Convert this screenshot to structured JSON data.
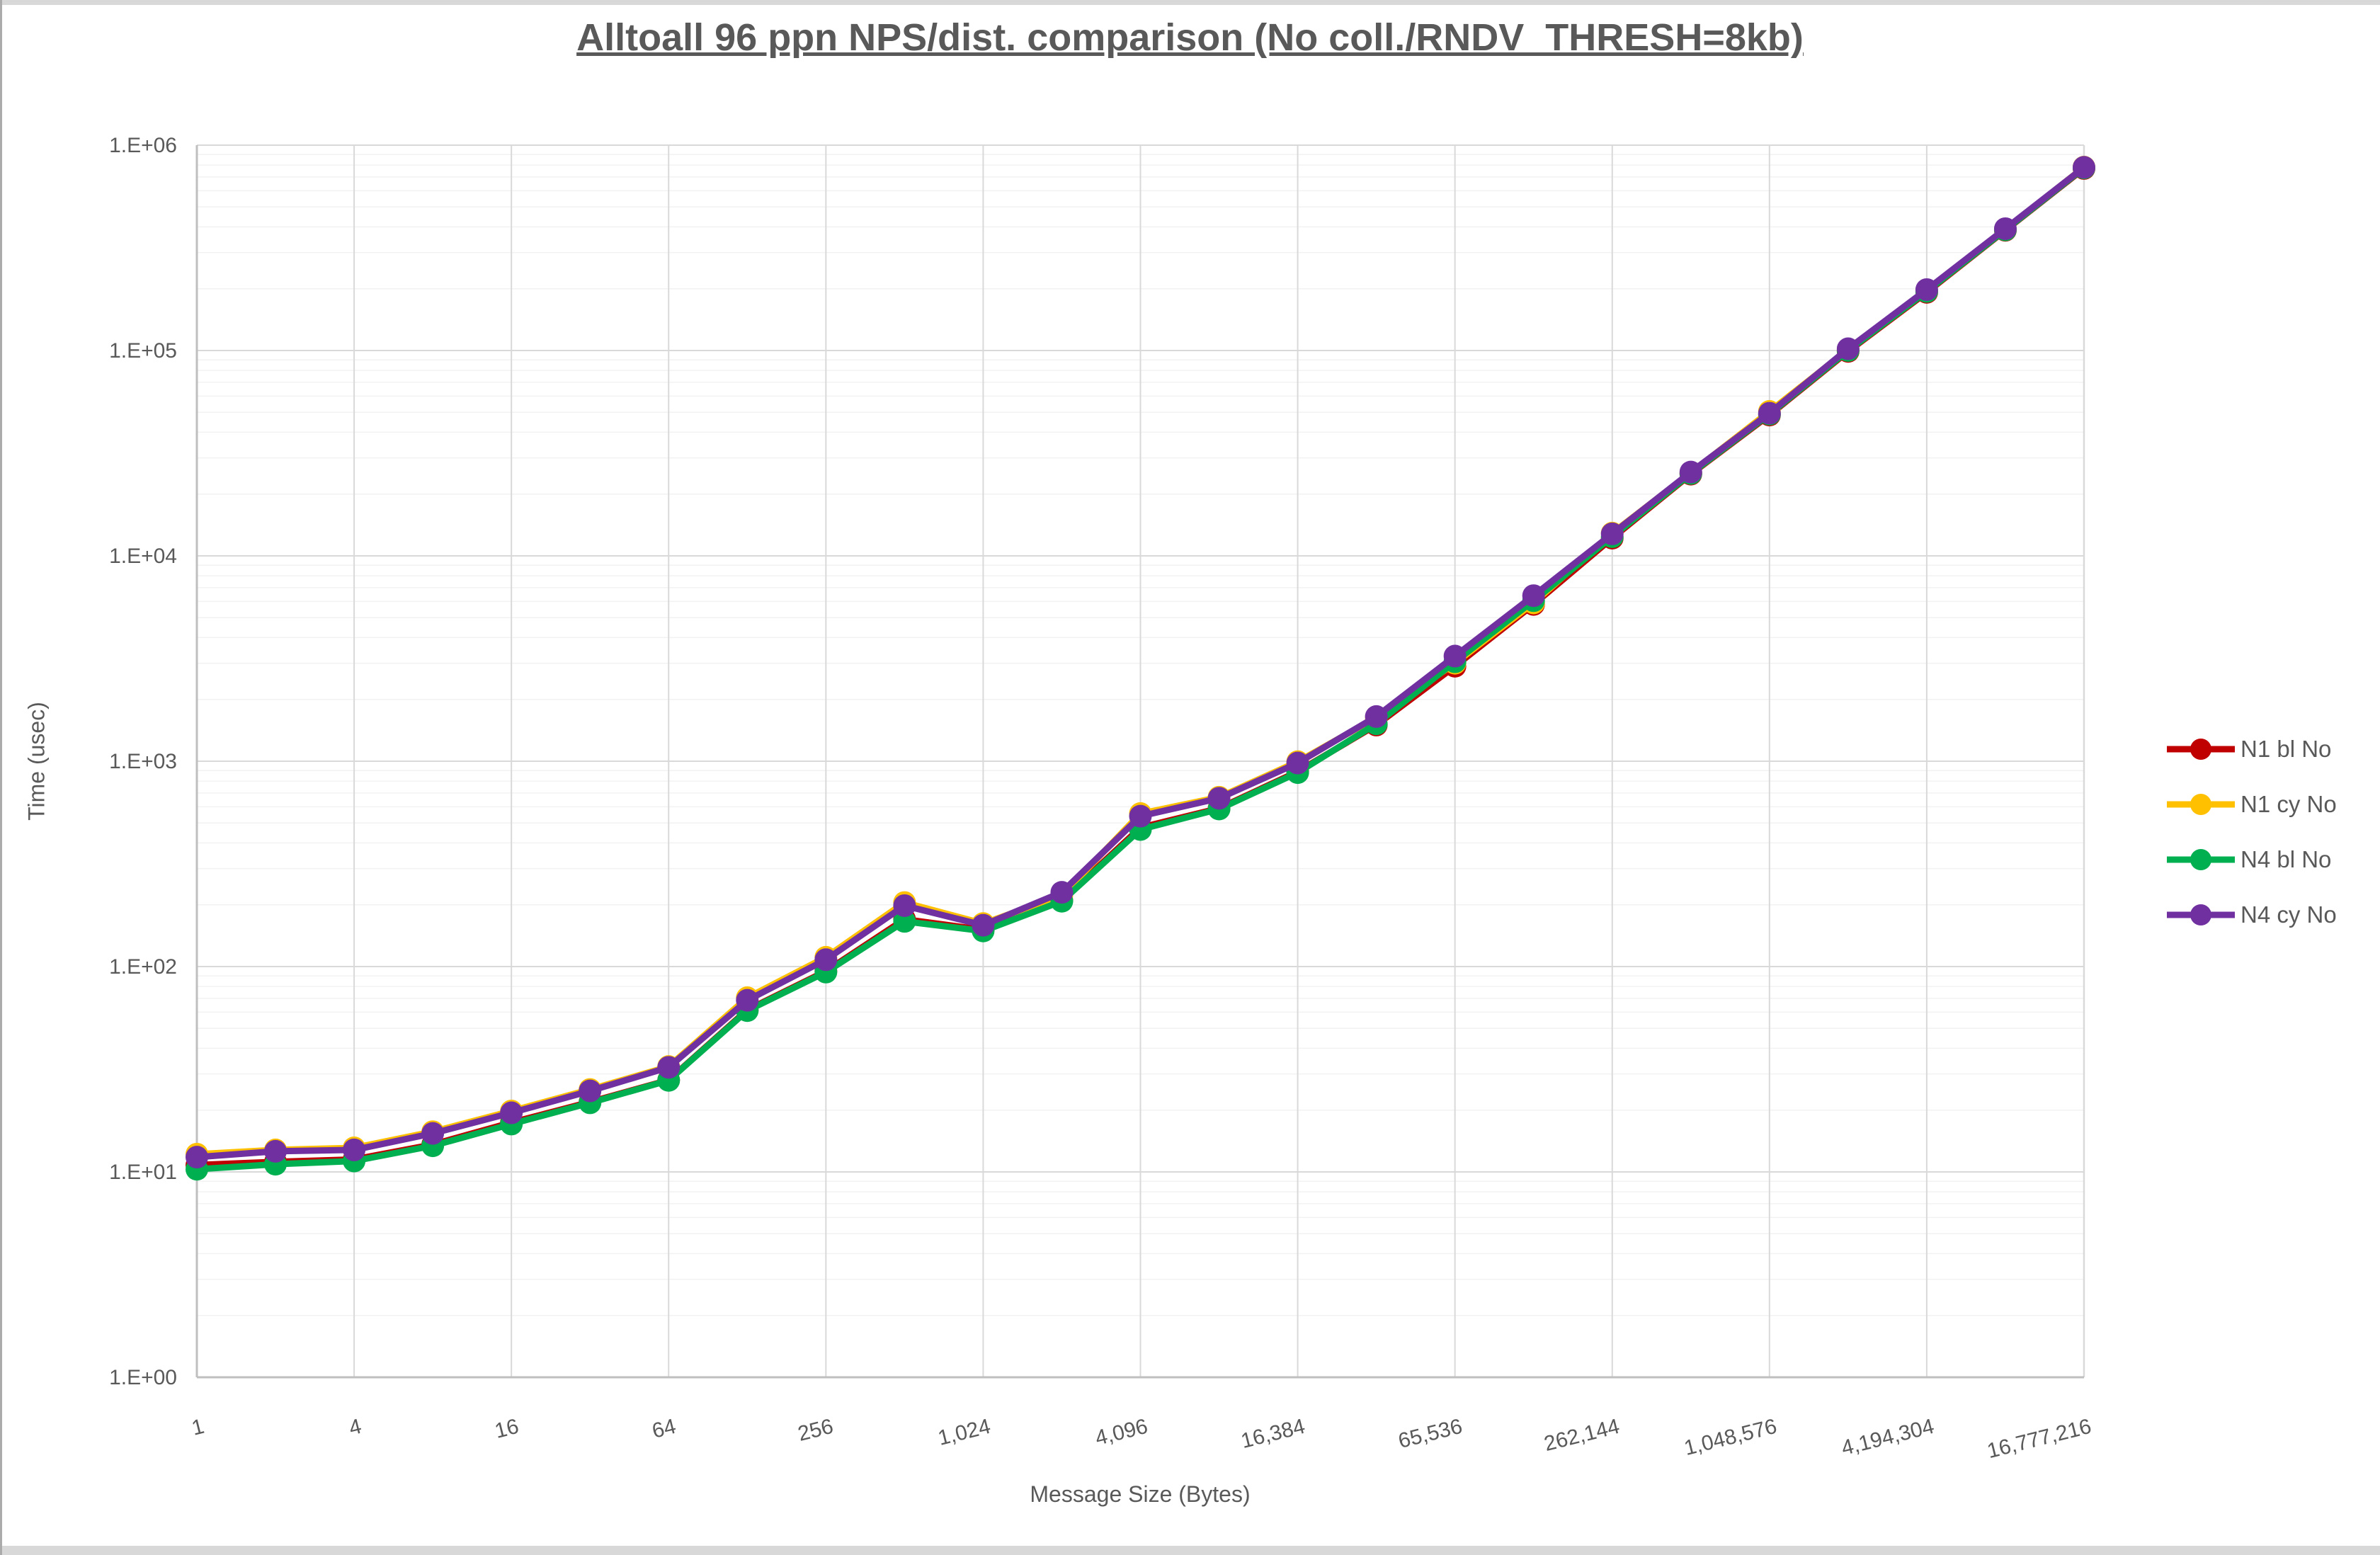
{
  "frame": {
    "top_strip_color": "#d8d8d8",
    "bottom_strip_color": "#d8d8d8",
    "left_edge_color": "#ababab",
    "background": "#ffffff"
  },
  "chart_data": {
    "type": "line",
    "title": "Alltoall 96 ppn NPS/dist. comparison (No coll./RNDV_THRESH=8kb)",
    "xlabel": "Message Size (Bytes)",
    "ylabel": "Time (usec)",
    "legend_position": "right",
    "grid": {
      "major_color": "#d9d9d9",
      "minor_color": "#f2f2f2",
      "axis_color": "#bfbfbf",
      "show_minor_log_lines": true
    },
    "x_axis": {
      "scale": "log2",
      "min": 1,
      "max": 16777216,
      "tick_values": [
        1,
        4,
        16,
        64,
        256,
        1024,
        4096,
        16384,
        65536,
        262144,
        1048576,
        4194304,
        16777216
      ],
      "tick_labels": [
        "1",
        "4",
        "16",
        "64",
        "256",
        "1,024",
        "4,096",
        "16,384",
        "65,536",
        "262,144",
        "1,048,576",
        "4,194,304",
        "16,777,216"
      ],
      "label_rotation_deg": -14
    },
    "y_axis": {
      "scale": "log10",
      "min": 1,
      "max": 1000000,
      "tick_labels": [
        "1.E+00",
        "1.E+01",
        "1.E+02",
        "1.E+03",
        "1.E+04",
        "1.E+05",
        "1.E+06"
      ]
    },
    "x": [
      1,
      2,
      4,
      8,
      16,
      32,
      64,
      128,
      256,
      512,
      1024,
      2048,
      4096,
      8192,
      16384,
      32768,
      65536,
      131072,
      262144,
      524288,
      1048576,
      2097152,
      4194304,
      8388608,
      16777216
    ],
    "series": [
      {
        "name": "N1 bl No",
        "color": "#c00000",
        "values": [
          10.8,
          11.2,
          11.5,
          13.6,
          17.4,
          21.9,
          28.0,
          61.5,
          95,
          170,
          151,
          210,
          475,
          590,
          890,
          1500,
          2900,
          5800,
          12200,
          25000,
          48500,
          99000,
          192000,
          385000,
          770000
        ]
      },
      {
        "name": "N1 cy No",
        "color": "#ffc000",
        "values": [
          12.2,
          12.8,
          13.1,
          15.7,
          19.8,
          25.2,
          32.6,
          70.5,
          111,
          205,
          162,
          222,
          556,
          668,
          995,
          1630,
          3000,
          5900,
          12900,
          25400,
          50500,
          101000,
          196000,
          388000,
          782000
        ]
      },
      {
        "name": "N4 bl No",
        "color": "#00b050",
        "values": [
          10.3,
          10.9,
          11.3,
          13.4,
          17.1,
          21.7,
          27.9,
          61.0,
          94,
          166,
          149,
          208,
          465,
          585,
          880,
          1520,
          3050,
          6050,
          12400,
          25200,
          49000,
          100000,
          194000,
          387000,
          775000
        ]
      },
      {
        "name": "N4 cy No",
        "color": "#7030a0",
        "values": [
          11.8,
          12.6,
          12.8,
          15.4,
          19.4,
          24.8,
          32.3,
          68.5,
          108,
          198,
          159,
          230,
          540,
          660,
          980,
          1650,
          3250,
          6400,
          12800,
          25600,
          49500,
          102000,
          198000,
          392000,
          780000
        ]
      }
    ]
  }
}
